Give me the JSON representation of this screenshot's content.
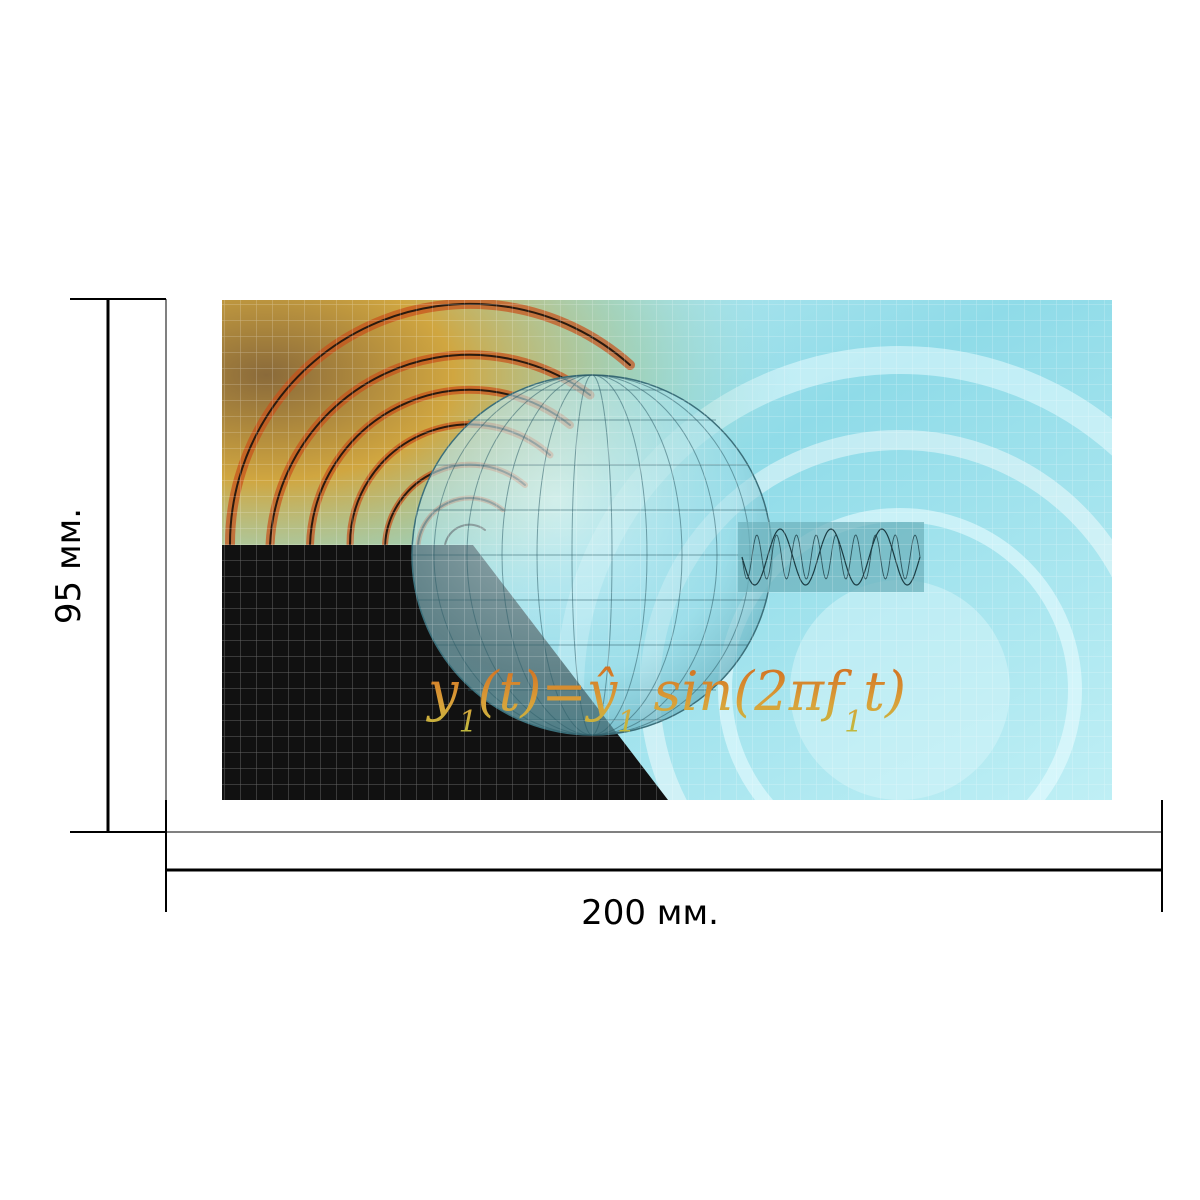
{
  "dimensions": {
    "height_label": "95 мм.",
    "width_label": "200 мм."
  },
  "artwork": {
    "formula": {
      "y": "y",
      "sub1": "1",
      "open": "(t)=",
      "yhat": "ŷ",
      "sub2": "1",
      "sin": " sin(2π",
      "f": "f",
      "sub3": "1",
      "close": "t)"
    },
    "colors": {
      "sky": "#9fe3ee",
      "deep": "#6fc4d6",
      "dark": "#111111",
      "warm": "#c8501a",
      "gold": "#d9a23a"
    }
  }
}
